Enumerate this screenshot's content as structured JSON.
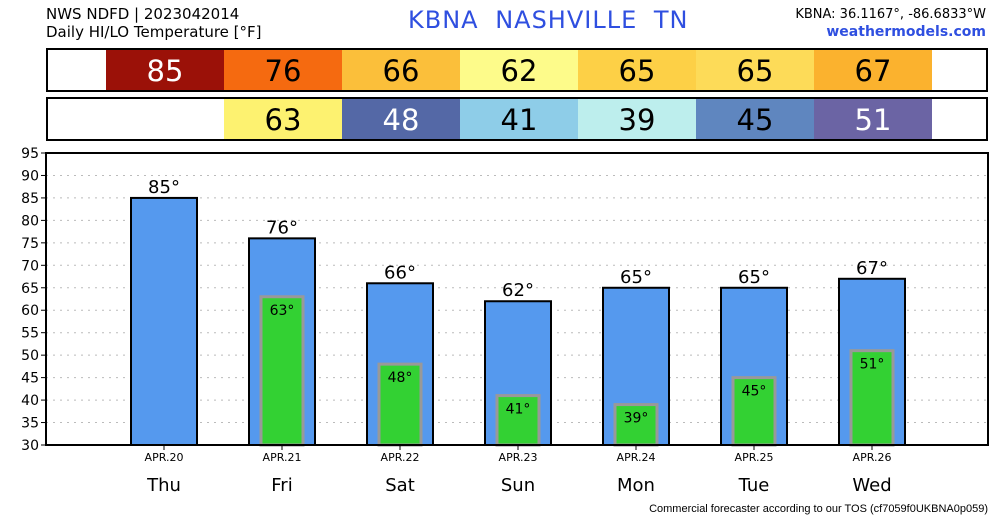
{
  "header": {
    "line1": "NWS NDFD | 2023042014",
    "line2": "Daily HI/LO Temperature [°F]",
    "station": "KBNA  NASHVILLE     TN",
    "coords": "KBNA: 36.1167°, -86.6833°W",
    "brand": "weathermodels.com"
  },
  "footer": "Commercial forecaster according to our TOS (cf7059f0UKBNA0p059)",
  "strips": {
    "hi": [
      {
        "text": "85",
        "color": "#9b1108",
        "text_color": "#ffffff"
      },
      {
        "text": "76",
        "color": "#f56a10",
        "text_color": "#000000"
      },
      {
        "text": "66",
        "color": "#fbbf3a",
        "text_color": "#000000"
      },
      {
        "text": "62",
        "color": "#fdfb8a",
        "text_color": "#000000"
      },
      {
        "text": "65",
        "color": "#fdd046",
        "text_color": "#000000"
      },
      {
        "text": "65",
        "color": "#fddb58",
        "text_color": "#000000"
      },
      {
        "text": "67",
        "color": "#fbb22e",
        "text_color": "#000000"
      }
    ],
    "lo": [
      {
        "text": "",
        "color": "#ffffff",
        "text_color": "#000000"
      },
      {
        "text": "63",
        "color": "#fdf270",
        "text_color": "#000000"
      },
      {
        "text": "48",
        "color": "#5468a6",
        "text_color": "#ffffff"
      },
      {
        "text": "41",
        "color": "#8ecde8",
        "text_color": "#000000"
      },
      {
        "text": "39",
        "color": "#bdeeed",
        "text_color": "#000000"
      },
      {
        "text": "45",
        "color": "#5f86bf",
        "text_color": "#000000"
      },
      {
        "text": "51",
        "color": "#6b64a4",
        "text_color": "#ffffff"
      }
    ]
  },
  "chart_data": {
    "type": "bar",
    "categories": [
      "Thu",
      "Fri",
      "Sat",
      "Sun",
      "Mon",
      "Tue",
      "Wed"
    ],
    "dates": [
      "APR.20",
      "APR.21",
      "APR.22",
      "APR.23",
      "APR.24",
      "APR.25",
      "APR.26"
    ],
    "series": [
      {
        "values": [
          85,
          76,
          66,
          62,
          65,
          65,
          67
        ],
        "labels": [
          "85°",
          "76°",
          "66°",
          "62°",
          "65°",
          "65°",
          "67°"
        ],
        "color": "#5599ee"
      },
      {
        "values": [
          null,
          63,
          48,
          41,
          39,
          45,
          51
        ],
        "labels": [
          "",
          "63°",
          "48°",
          "41°",
          "39°",
          "45°",
          "51°"
        ],
        "color": "#33d133"
      }
    ],
    "ylim": [
      30,
      95
    ],
    "yticks": [
      "30",
      "35",
      "40",
      "45",
      "50",
      "55",
      "60",
      "65",
      "70",
      "75",
      "80",
      "85",
      "90",
      "95"
    ],
    "grid": true
  }
}
